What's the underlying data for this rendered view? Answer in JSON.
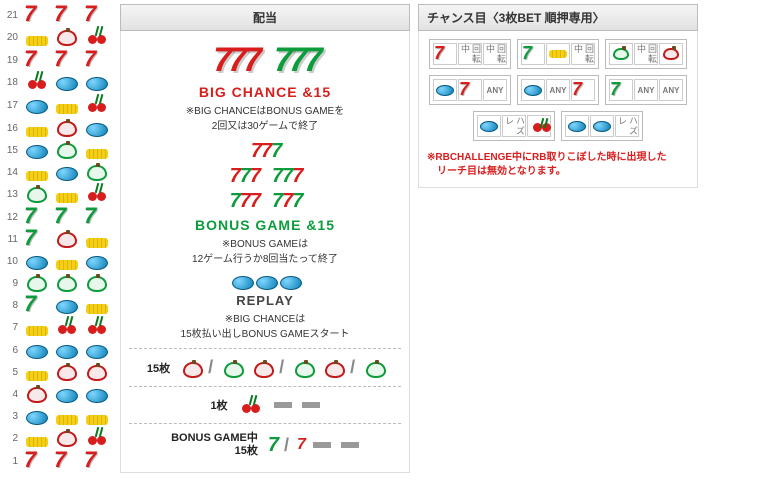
{
  "headers": {
    "payout": "配当",
    "chance": "チャンス目〈3枚BET 順押専用〉"
  },
  "reels": {
    "rows": 21,
    "col1": [
      "seven-r",
      "bell",
      "seven-r",
      "cherry",
      "replay",
      "bell",
      "replay",
      "bell",
      "apple-g",
      "seven-g",
      "seven-g",
      "replay",
      "apple-g",
      "seven-g",
      "bell",
      "replay",
      "bell",
      "apple-r",
      "replay",
      "bell",
      "seven-r"
    ],
    "col2": [
      "seven-r",
      "apple-r",
      "seven-r",
      "replay",
      "bell",
      "apple-r",
      "apple-g",
      "replay",
      "bell",
      "seven-g",
      "apple-r",
      "bell",
      "apple-g",
      "replay",
      "cherry",
      "replay",
      "apple-r",
      "replay",
      "bell",
      "apple-r",
      "seven-r"
    ],
    "col3": [
      "seven-r",
      "cherry",
      "seven-r",
      "replay",
      "cherry",
      "replay",
      "bell",
      "apple-g",
      "cherry",
      "seven-g",
      "bell",
      "replay",
      "apple-g",
      "bell",
      "cherry",
      "replay",
      "apple-r",
      "replay",
      "bell",
      "cherry",
      "seven-r"
    ]
  },
  "payout": {
    "big": {
      "title": "BIG CHANCE &15",
      "sub1": "※BIG CHANCEはBONUS GAMEを",
      "sub2": "2回又は30ゲームで終了"
    },
    "bonus": {
      "title": "BONUS GAME &15",
      "sub1": "※BONUS GAMEは",
      "sub2": "12ゲーム行うか8回当たって終了"
    },
    "replay": {
      "title": "REPLAY",
      "sub1": "※BIG CHANCEは",
      "sub2": "15枚払い出しBONUS GAMEスタート"
    },
    "line15": "15枚",
    "line1": "1枚",
    "lineBG": "BONUS GAME中\n15枚"
  },
  "chance": {
    "labels": {
      "kaiten": "回転中",
      "any": "ANY",
      "hazure": "ハズレ"
    },
    "boxes": [
      {
        "cells": [
          "seven-r",
          "kaiten",
          "kaiten"
        ],
        "types": [
          "sym",
          "txt",
          "txt"
        ]
      },
      {
        "cells": [
          "seven-g",
          "bell",
          "kaiten"
        ],
        "types": [
          "sym",
          "sym",
          "txt"
        ]
      },
      {
        "cells": [
          "apple-g",
          "kaiten",
          "apple-r"
        ],
        "types": [
          "sym",
          "txt",
          "sym"
        ]
      },
      {
        "cells": [
          "replay",
          "seven-r",
          "any"
        ],
        "types": [
          "sym",
          "sym",
          "any"
        ]
      },
      {
        "cells": [
          "replay",
          "any",
          "seven-r"
        ],
        "types": [
          "sym",
          "any",
          "sym"
        ]
      },
      {
        "cells": [
          "seven-g",
          "any",
          "any"
        ],
        "types": [
          "sym",
          "any",
          "any"
        ]
      },
      {
        "cells": [
          "replay",
          "hazure",
          "cherry"
        ],
        "types": [
          "sym",
          "haz",
          "sym"
        ]
      },
      {
        "cells": [
          "replay",
          "replay",
          "hazure"
        ],
        "types": [
          "sym",
          "sym",
          "haz"
        ]
      }
    ],
    "warn1": "※RBCHALLENGE中にRB取りこぼした時に出現した",
    "warn2": "リーチ目は無効となります。"
  }
}
